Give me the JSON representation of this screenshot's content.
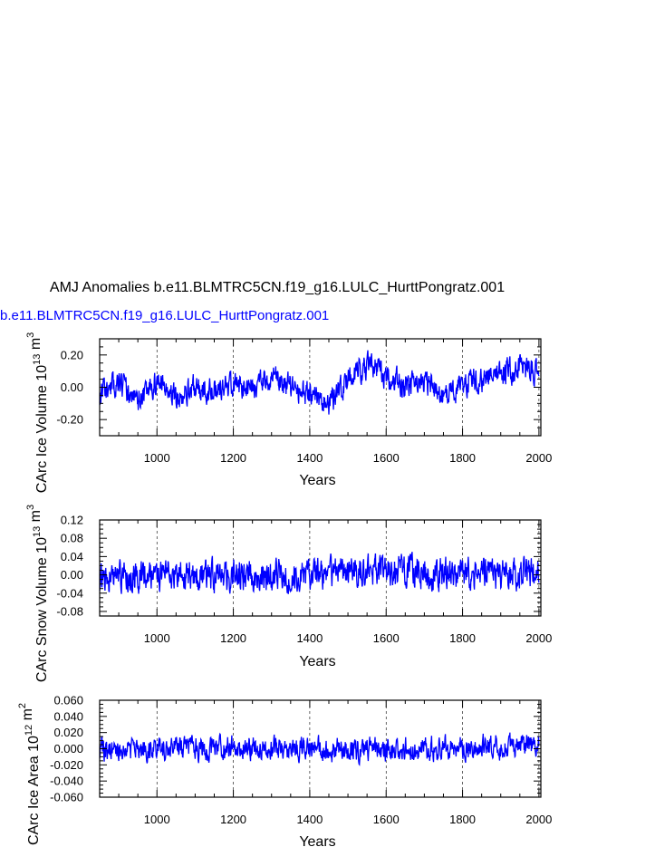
{
  "title": "AMJ Anomalies b.e11.BLMTRC5CN.f19_g16.LULC_HurttPongratz.001",
  "legend_label": "b.e11.BLMTRC5CN.f19_g16.LULC_HurttPongratz.001",
  "line_color": "#0000ff",
  "chart_data": [
    {
      "type": "line",
      "name": "ice-volume",
      "xlabel": "Years",
      "ylabel_main": "CArc Ice Volume 10",
      "ylabel_exp": "13",
      "ylabel_unit": " m",
      "ylabel_unit_exp": "3",
      "xlim": [
        850,
        2005
      ],
      "ylim": [
        -0.3,
        0.3
      ],
      "xticks": [
        1000,
        1200,
        1400,
        1600,
        1800,
        2000
      ],
      "xtick_labels": [
        "1000",
        "1200",
        "1400",
        "1600",
        "1800",
        "2000"
      ],
      "yticks": [
        -0.2,
        0.0,
        0.2
      ],
      "ytick_labels": [
        "-0.20",
        "0.00",
        "0.20"
      ],
      "grid_x": true,
      "trend_x": [
        850,
        900,
        950,
        1000,
        1050,
        1100,
        1150,
        1200,
        1250,
        1300,
        1350,
        1400,
        1450,
        1500,
        1550,
        1600,
        1650,
        1700,
        1750,
        1800,
        1850,
        1900,
        1950,
        2005
      ],
      "trend_y": [
        -0.05,
        0.02,
        -0.08,
        0.03,
        -0.06,
        0.0,
        -0.02,
        0.02,
        -0.01,
        0.07,
        0.0,
        -0.05,
        -0.1,
        0.03,
        0.14,
        0.07,
        0.0,
        0.04,
        -0.06,
        0.02,
        0.05,
        0.09,
        0.12,
        0.1
      ],
      "noise": 0.065,
      "seed": 11
    },
    {
      "type": "line",
      "name": "snow-volume",
      "xlabel": "Years",
      "ylabel_main": "CArc Snow Volume 10",
      "ylabel_exp": "13",
      "ylabel_unit": " m",
      "ylabel_unit_exp": "3",
      "xlim": [
        850,
        2005
      ],
      "ylim": [
        -0.09,
        0.12
      ],
      "xticks": [
        1000,
        1200,
        1400,
        1600,
        1800,
        2000
      ],
      "xtick_labels": [
        "1000",
        "1200",
        "1400",
        "1600",
        "1800",
        "2000"
      ],
      "yticks": [
        -0.08,
        -0.04,
        0.0,
        0.04,
        0.08,
        0.12
      ],
      "ytick_labels": [
        "-0.08",
        "-0.04",
        "0.00",
        "0.04",
        "0.08",
        "0.12"
      ],
      "grid_x": true,
      "trend_x": [
        850,
        1000,
        1200,
        1400,
        1600,
        1800,
        2005
      ],
      "trend_y": [
        -0.01,
        0.0,
        -0.005,
        0.0,
        0.01,
        0.0,
        0.005
      ],
      "noise": 0.028,
      "seed": 23
    },
    {
      "type": "line",
      "name": "ice-area",
      "xlabel": "Years",
      "ylabel_main": "CArc Ice Area 10",
      "ylabel_exp": "12",
      "ylabel_unit": " m",
      "ylabel_unit_exp": "2",
      "xlim": [
        850,
        2005
      ],
      "ylim": [
        -0.06,
        0.06
      ],
      "xticks": [
        1000,
        1200,
        1400,
        1600,
        1800,
        2000
      ],
      "xtick_labels": [
        "1000",
        "1200",
        "1400",
        "1600",
        "1800",
        "2000"
      ],
      "yticks": [
        -0.06,
        -0.04,
        -0.02,
        0.0,
        0.02,
        0.04,
        0.06
      ],
      "ytick_labels": [
        "-0.060",
        "-0.040",
        "-0.020",
        "0.000",
        "0.020",
        "0.040",
        "0.060"
      ],
      "grid_x": true,
      "trend_x": [
        850,
        1000,
        1200,
        1400,
        1600,
        1800,
        2005
      ],
      "trend_y": [
        -0.002,
        0.0,
        0.001,
        -0.001,
        0.0,
        0.002,
        0.004
      ],
      "noise": 0.012,
      "seed": 37
    }
  ]
}
